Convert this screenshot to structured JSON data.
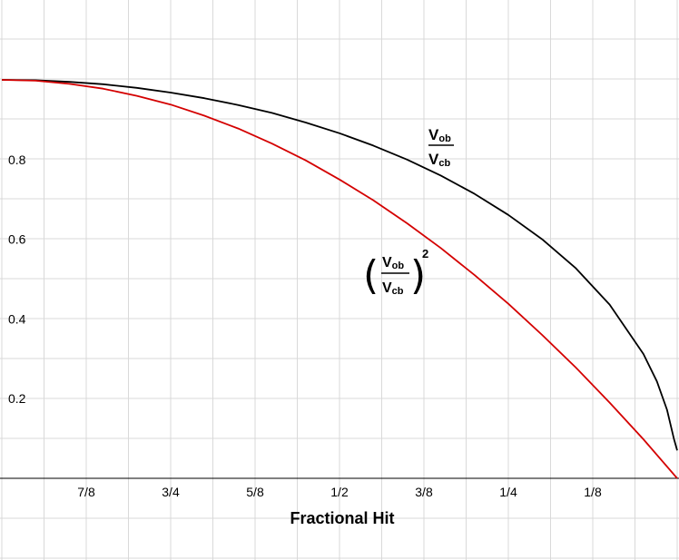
{
  "chart_data": {
    "type": "line",
    "xlabel": "Fractional Hit",
    "x_tick_labels": [
      "7/8",
      "3/4",
      "5/8",
      "1/2",
      "3/8",
      "1/4",
      "1/8"
    ],
    "x_tick_values": [
      0.875,
      0.75,
      0.625,
      0.5,
      0.375,
      0.25,
      0.125
    ],
    "xlim": [
      1,
      0
    ],
    "y_tick_labels": [
      "0.2",
      "0.4",
      "0.6",
      "0.8"
    ],
    "y_tick_values": [
      0.2,
      0.4,
      0.6,
      0.8
    ],
    "ylim": [
      -0.2,
      1.2
    ],
    "grid": true,
    "series": [
      {
        "color": "#000000",
        "label_main": "V",
        "label_num_sub": "ob",
        "label_den_sub": "cb",
        "x": [
          1,
          0.95,
          0.9,
          0.85,
          0.8,
          0.75,
          0.7,
          0.65,
          0.6,
          0.55,
          0.5,
          0.45,
          0.4,
          0.35,
          0.3,
          0.25,
          0.2,
          0.15,
          0.1,
          0.05,
          0.03,
          0.015,
          0.005,
          0
        ],
        "y": [
          1.0,
          0.999,
          0.995,
          0.989,
          0.98,
          0.968,
          0.954,
          0.937,
          0.917,
          0.893,
          0.866,
          0.835,
          0.8,
          0.76,
          0.714,
          0.661,
          0.6,
          0.527,
          0.436,
          0.312,
          0.243,
          0.172,
          0.1,
          0.07
        ]
      },
      {
        "color": "#d40000",
        "label_main": "V",
        "label_num_sub": "ob",
        "label_den_sub": "cb",
        "label_exponent": "2",
        "x": [
          1,
          0.95,
          0.9,
          0.85,
          0.8,
          0.75,
          0.7,
          0.65,
          0.6,
          0.55,
          0.5,
          0.45,
          0.4,
          0.35,
          0.3,
          0.25,
          0.2,
          0.15,
          0.1,
          0.05,
          0
        ],
        "y": [
          1.0,
          0.998,
          0.99,
          0.978,
          0.96,
          0.938,
          0.91,
          0.878,
          0.84,
          0.798,
          0.75,
          0.698,
          0.64,
          0.578,
          0.51,
          0.438,
          0.36,
          0.278,
          0.19,
          0.098,
          0.0
        ]
      }
    ]
  }
}
